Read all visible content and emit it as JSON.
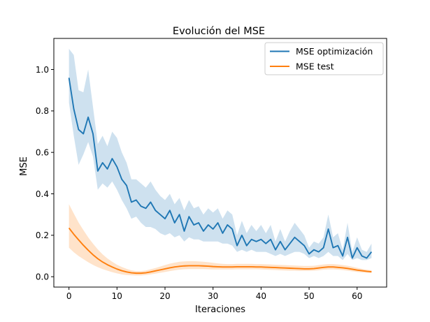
{
  "chart_data": {
    "type": "line",
    "title": "Evolución del MSE",
    "xlabel": "Iteraciones",
    "ylabel": "MSE",
    "xlim": [
      -3.15,
      66.15
    ],
    "ylim": [
      -0.05,
      1.15
    ],
    "xticks": [
      0,
      10,
      20,
      30,
      40,
      50,
      60
    ],
    "yticks": [
      0.0,
      0.2,
      0.4,
      0.6,
      0.8,
      1.0
    ],
    "xtick_labels": [
      "0",
      "10",
      "20",
      "30",
      "40",
      "50",
      "60"
    ],
    "ytick_labels": [
      "0.0",
      "0.2",
      "0.4",
      "0.6",
      "0.8",
      "1.0"
    ],
    "legend_position": "top-right",
    "x": [
      0,
      1,
      2,
      3,
      4,
      5,
      6,
      7,
      8,
      9,
      10,
      11,
      12,
      13,
      14,
      15,
      16,
      17,
      18,
      19,
      20,
      21,
      22,
      23,
      24,
      25,
      26,
      27,
      28,
      29,
      30,
      31,
      32,
      33,
      34,
      35,
      36,
      37,
      38,
      39,
      40,
      41,
      42,
      43,
      44,
      45,
      46,
      47,
      48,
      49,
      50,
      51,
      52,
      53,
      54,
      55,
      56,
      57,
      58,
      59,
      60,
      61,
      62,
      63
    ],
    "series": [
      {
        "name": "MSE optimización",
        "color": "#1f77b4",
        "values": [
          0.96,
          0.81,
          0.71,
          0.69,
          0.77,
          0.69,
          0.51,
          0.55,
          0.52,
          0.57,
          0.53,
          0.47,
          0.44,
          0.36,
          0.37,
          0.34,
          0.33,
          0.36,
          0.32,
          0.3,
          0.28,
          0.32,
          0.26,
          0.3,
          0.22,
          0.29,
          0.25,
          0.26,
          0.22,
          0.25,
          0.23,
          0.26,
          0.21,
          0.25,
          0.23,
          0.15,
          0.2,
          0.15,
          0.18,
          0.17,
          0.18,
          0.16,
          0.18,
          0.13,
          0.17,
          0.13,
          0.16,
          0.19,
          0.17,
          0.15,
          0.11,
          0.13,
          0.12,
          0.14,
          0.23,
          0.14,
          0.15,
          0.1,
          0.19,
          0.09,
          0.14,
          0.1,
          0.09,
          0.12
        ],
        "lower": [
          0.84,
          0.68,
          0.54,
          0.59,
          0.65,
          0.58,
          0.42,
          0.45,
          0.43,
          0.46,
          0.42,
          0.37,
          0.33,
          0.28,
          0.29,
          0.26,
          0.24,
          0.24,
          0.23,
          0.21,
          0.2,
          0.21,
          0.19,
          0.2,
          0.17,
          0.19,
          0.18,
          0.18,
          0.17,
          0.17,
          0.17,
          0.17,
          0.16,
          0.16,
          0.15,
          0.12,
          0.13,
          0.12,
          0.13,
          0.12,
          0.12,
          0.12,
          0.11,
          0.1,
          0.11,
          0.1,
          0.11,
          0.12,
          0.12,
          0.11,
          0.09,
          0.1,
          0.09,
          0.1,
          0.12,
          0.1,
          0.1,
          0.08,
          0.11,
          0.08,
          0.09,
          0.08,
          0.08,
          0.09
        ],
        "upper": [
          1.1,
          1.07,
          0.9,
          0.89,
          1.0,
          0.82,
          0.64,
          0.68,
          0.63,
          0.7,
          0.67,
          0.6,
          0.55,
          0.47,
          0.47,
          0.45,
          0.43,
          0.46,
          0.42,
          0.39,
          0.37,
          0.4,
          0.35,
          0.38,
          0.32,
          0.37,
          0.33,
          0.34,
          0.3,
          0.33,
          0.31,
          0.33,
          0.28,
          0.32,
          0.3,
          0.2,
          0.27,
          0.21,
          0.25,
          0.22,
          0.25,
          0.21,
          0.25,
          0.17,
          0.23,
          0.17,
          0.22,
          0.26,
          0.23,
          0.2,
          0.14,
          0.17,
          0.16,
          0.19,
          0.3,
          0.19,
          0.21,
          0.13,
          0.26,
          0.12,
          0.19,
          0.13,
          0.12,
          0.16
        ]
      },
      {
        "name": "MSE test",
        "color": "#ff7f0e",
        "values": [
          0.235,
          0.205,
          0.178,
          0.152,
          0.128,
          0.106,
          0.087,
          0.071,
          0.058,
          0.047,
          0.037,
          0.029,
          0.023,
          0.019,
          0.017,
          0.017,
          0.019,
          0.023,
          0.028,
          0.033,
          0.038,
          0.043,
          0.047,
          0.05,
          0.052,
          0.053,
          0.053,
          0.053,
          0.052,
          0.051,
          0.049,
          0.048,
          0.047,
          0.047,
          0.047,
          0.048,
          0.048,
          0.048,
          0.048,
          0.047,
          0.047,
          0.046,
          0.045,
          0.044,
          0.043,
          0.042,
          0.041,
          0.04,
          0.039,
          0.038,
          0.038,
          0.039,
          0.042,
          0.045,
          0.047,
          0.047,
          0.045,
          0.043,
          0.04,
          0.036,
          0.032,
          0.029,
          0.026,
          0.024
        ],
        "lower": [
          0.14,
          0.118,
          0.1,
          0.085,
          0.07,
          0.057,
          0.046,
          0.037,
          0.029,
          0.022,
          0.016,
          0.011,
          0.008,
          0.007,
          0.006,
          0.006,
          0.008,
          0.011,
          0.015,
          0.019,
          0.023,
          0.027,
          0.031,
          0.034,
          0.036,
          0.037,
          0.037,
          0.037,
          0.037,
          0.036,
          0.035,
          0.035,
          0.035,
          0.035,
          0.035,
          0.036,
          0.036,
          0.036,
          0.036,
          0.036,
          0.035,
          0.034,
          0.033,
          0.032,
          0.031,
          0.03,
          0.029,
          0.029,
          0.028,
          0.028,
          0.028,
          0.029,
          0.031,
          0.034,
          0.035,
          0.035,
          0.034,
          0.032,
          0.029,
          0.026,
          0.023,
          0.021,
          0.019,
          0.018
        ],
        "upper": [
          0.35,
          0.305,
          0.262,
          0.225,
          0.19,
          0.16,
          0.132,
          0.108,
          0.088,
          0.072,
          0.058,
          0.047,
          0.038,
          0.031,
          0.027,
          0.027,
          0.03,
          0.036,
          0.042,
          0.049,
          0.056,
          0.063,
          0.068,
          0.072,
          0.074,
          0.075,
          0.075,
          0.074,
          0.072,
          0.07,
          0.067,
          0.064,
          0.062,
          0.061,
          0.061,
          0.062,
          0.062,
          0.062,
          0.062,
          0.061,
          0.061,
          0.06,
          0.059,
          0.058,
          0.057,
          0.056,
          0.055,
          0.054,
          0.053,
          0.052,
          0.052,
          0.053,
          0.056,
          0.059,
          0.061,
          0.061,
          0.059,
          0.056,
          0.053,
          0.048,
          0.043,
          0.038,
          0.034,
          0.031
        ]
      }
    ]
  }
}
